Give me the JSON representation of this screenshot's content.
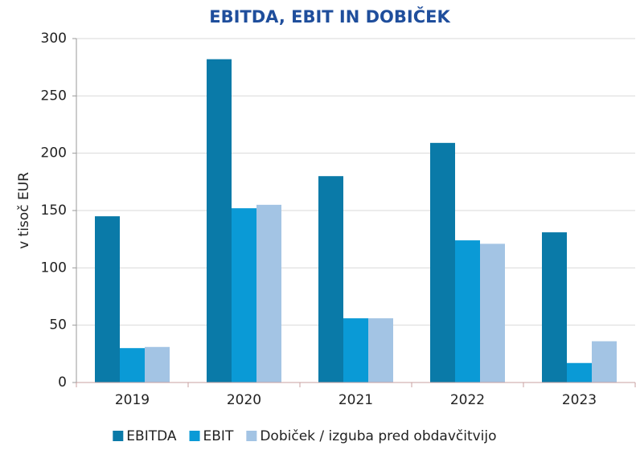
{
  "chart_data": {
    "type": "bar",
    "title": "EBITDA, EBIT IN DOBIČEK",
    "y_label": "v tisoč EUR",
    "categories": [
      "2019",
      "2020",
      "2021",
      "2022",
      "2023"
    ],
    "series": [
      {
        "name": "EBITDA",
        "color": "#0a7aa8",
        "values": [
          145,
          282,
          180,
          209,
          131
        ]
      },
      {
        "name": "EBIT",
        "color": "#0a9ad6",
        "values": [
          30,
          152,
          56,
          124,
          17
        ]
      },
      {
        "name": "Dobiček / izguba pred obdavčitvijo",
        "color": "#a3c4e4",
        "values": [
          31,
          155,
          56,
          121,
          36
        ]
      }
    ],
    "ylim": [
      0,
      300
    ],
    "yticks": [
      0,
      50,
      100,
      150,
      200,
      250,
      300
    ],
    "grid": true,
    "legend": "bottom"
  }
}
